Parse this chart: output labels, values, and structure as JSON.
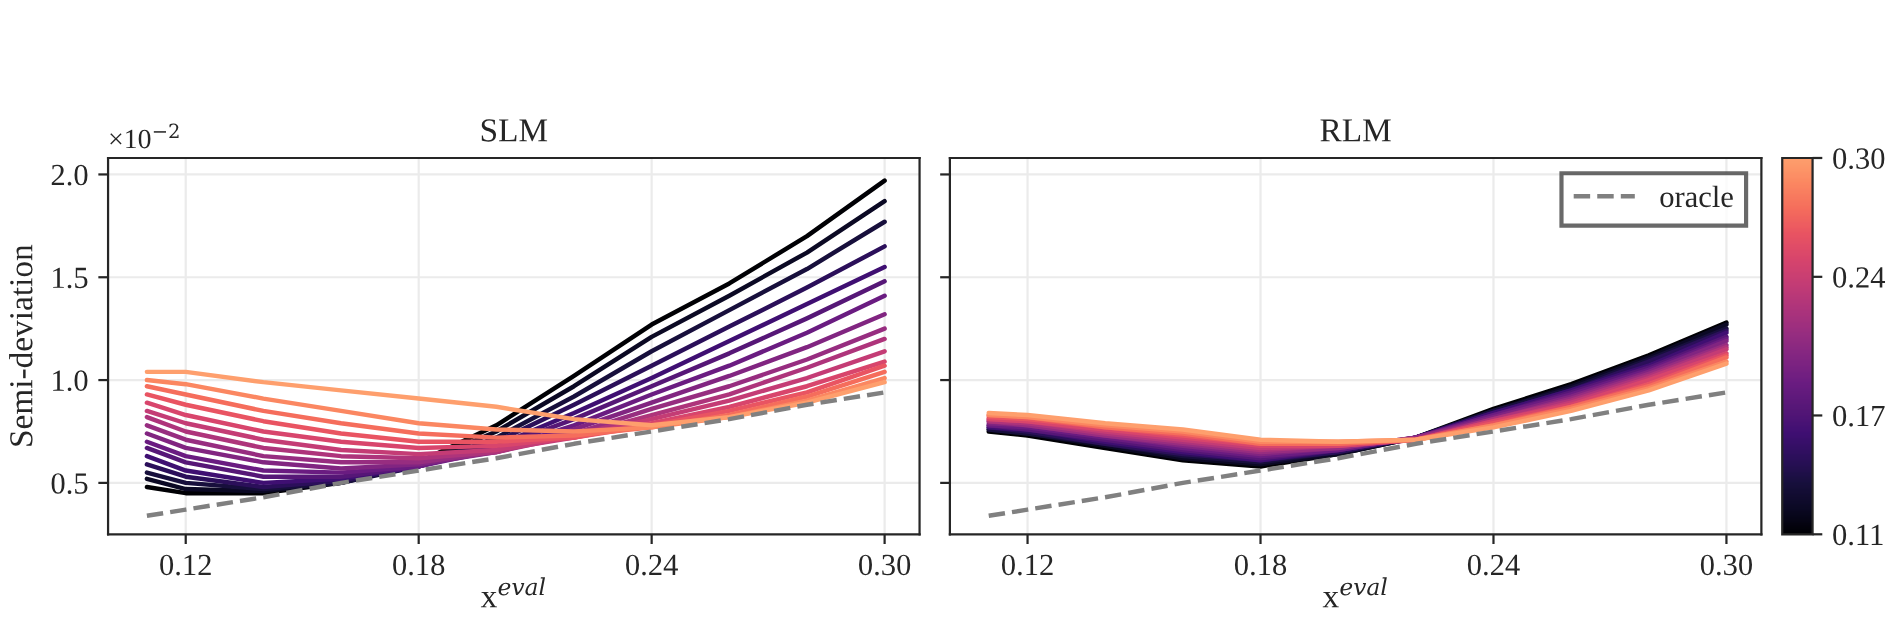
{
  "chart_data": [
    {
      "type": "line",
      "title": "SLM",
      "xlabel": "x$^{eval}$",
      "ylabel": "Semi-deviation",
      "annotations": [
        "×10$^{−2}$"
      ],
      "x": [
        0.11,
        0.12,
        0.14,
        0.16,
        0.18,
        0.2,
        0.22,
        0.24,
        0.26,
        0.28,
        0.3
      ],
      "xlim": [
        0.1,
        0.309
      ],
      "ylim": [
        0.25,
        2.08
      ],
      "xticks": [
        0.12,
        0.18,
        0.24,
        {
          "value": 0.3,
          "label": "0.30"
        }
      ],
      "yticks": [
        0.5,
        {
          "value": 1,
          "label": "1.0"
        },
        1.5,
        {
          "value": 2,
          "label": "2.0"
        }
      ],
      "grid": true,
      "legend": false,
      "series": [
        {
          "color": "#000004",
          "values": [
            0.48,
            0.45,
            0.45,
            0.5,
            0.6,
            0.78,
            1.02,
            1.27,
            1.47,
            1.7,
            1.97
          ]
        },
        {
          "color": "#0b0924",
          "values": [
            0.52,
            0.47,
            0.46,
            0.5,
            0.59,
            0.75,
            0.97,
            1.21,
            1.41,
            1.62,
            1.87
          ]
        },
        {
          "color": "#170f3c",
          "values": [
            0.55,
            0.5,
            0.47,
            0.5,
            0.58,
            0.72,
            0.92,
            1.14,
            1.34,
            1.54,
            1.77
          ]
        },
        {
          "color": "#2b0f5a",
          "values": [
            0.59,
            0.53,
            0.48,
            0.51,
            0.58,
            0.7,
            0.88,
            1.07,
            1.26,
            1.45,
            1.65
          ]
        },
        {
          "color": "#3f0f72",
          "values": [
            0.63,
            0.56,
            0.5,
            0.52,
            0.58,
            0.68,
            0.84,
            1.01,
            1.19,
            1.37,
            1.55
          ]
        },
        {
          "color": "#561777",
          "values": [
            0.67,
            0.6,
            0.53,
            0.53,
            0.58,
            0.67,
            0.81,
            0.97,
            1.13,
            1.3,
            1.48
          ]
        },
        {
          "color": "#6a1c81",
          "values": [
            0.7,
            0.63,
            0.56,
            0.55,
            0.58,
            0.66,
            0.78,
            0.93,
            1.07,
            1.23,
            1.41
          ]
        },
        {
          "color": "#812581",
          "values": [
            0.74,
            0.67,
            0.6,
            0.57,
            0.59,
            0.65,
            0.76,
            0.89,
            1.02,
            1.16,
            1.32
          ]
        },
        {
          "color": "#972d80",
          "values": [
            0.78,
            0.71,
            0.63,
            0.6,
            0.6,
            0.65,
            0.74,
            0.86,
            0.97,
            1.1,
            1.25
          ]
        },
        {
          "color": "#ae347b",
          "values": [
            0.82,
            0.75,
            0.67,
            0.63,
            0.62,
            0.65,
            0.73,
            0.83,
            0.93,
            1.06,
            1.2
          ]
        },
        {
          "color": "#c43c75",
          "values": [
            0.85,
            0.79,
            0.71,
            0.66,
            0.64,
            0.66,
            0.72,
            0.81,
            0.9,
            1.01,
            1.14
          ]
        },
        {
          "color": "#d8456c",
          "values": [
            0.89,
            0.83,
            0.75,
            0.7,
            0.67,
            0.68,
            0.72,
            0.79,
            0.87,
            0.97,
            1.09
          ]
        },
        {
          "color": "#e95462",
          "values": [
            0.93,
            0.88,
            0.8,
            0.74,
            0.7,
            0.7,
            0.72,
            0.78,
            0.85,
            0.94,
            1.07
          ]
        },
        {
          "color": "#f56d5c",
          "values": [
            0.97,
            0.93,
            0.85,
            0.79,
            0.74,
            0.72,
            0.73,
            0.77,
            0.83,
            0.92,
            1.04
          ]
        },
        {
          "color": "#fb8761",
          "values": [
            1.0,
            0.98,
            0.91,
            0.85,
            0.79,
            0.76,
            0.75,
            0.77,
            0.82,
            0.9,
            1.01
          ]
        },
        {
          "color": "#fe9f6d",
          "values": [
            1.04,
            1.04,
            0.99,
            0.95,
            0.91,
            0.87,
            0.81,
            0.78,
            0.82,
            0.89,
            0.99
          ]
        },
        {
          "color": "#808080",
          "line_style": "dashed",
          "values": [
            0.34,
            0.37,
            0.43,
            0.5,
            0.56,
            0.62,
            0.69,
            0.75,
            0.81,
            0.88,
            0.94
          ]
        }
      ]
    },
    {
      "type": "line",
      "title": "RLM",
      "xlabel": "x$^{eval}$",
      "x": [
        0.11,
        0.12,
        0.14,
        0.16,
        0.18,
        0.2,
        0.22,
        0.24,
        0.26,
        0.28,
        0.3
      ],
      "xlim": [
        0.1,
        0.309
      ],
      "ylim": [
        0.25,
        2.08
      ],
      "xticks": [
        0.12,
        0.18,
        0.24,
        {
          "value": 0.3,
          "label": "0.30"
        }
      ],
      "yticks": [
        {
          "value": 0.5,
          "label": null
        },
        {
          "value": 1,
          "label": null
        },
        {
          "value": 1.5,
          "label": null
        },
        {
          "value": 2,
          "label": null
        }
      ],
      "tick_labels": "x",
      "grid": true,
      "legend": "top right",
      "clim": [
        0.11,
        0.3
      ],
      "cticks": [
        0.11,
        0.17,
        0.24,
        {
          "value": 0.3,
          "label": "0.30"
        }
      ],
      "series": [
        {
          "color": "#000004",
          "values": [
            0.75,
            0.73,
            0.67,
            0.61,
            0.58,
            0.64,
            0.72,
            0.86,
            0.98,
            1.12,
            1.28
          ]
        },
        {
          "color": "#0b0924",
          "values": [
            0.76,
            0.74,
            0.68,
            0.62,
            0.59,
            0.64,
            0.72,
            0.85,
            0.97,
            1.11,
            1.27
          ]
        },
        {
          "color": "#170f3c",
          "values": [
            0.76,
            0.74,
            0.69,
            0.63,
            0.6,
            0.65,
            0.72,
            0.85,
            0.96,
            1.1,
            1.25
          ]
        },
        {
          "color": "#2b0f5a",
          "values": [
            0.77,
            0.75,
            0.69,
            0.64,
            0.61,
            0.65,
            0.72,
            0.84,
            0.95,
            1.09,
            1.24
          ]
        },
        {
          "color": "#3f0f72",
          "values": [
            0.77,
            0.76,
            0.7,
            0.65,
            0.61,
            0.66,
            0.72,
            0.84,
            0.95,
            1.07,
            1.23
          ]
        },
        {
          "color": "#561777",
          "values": [
            0.78,
            0.76,
            0.71,
            0.66,
            0.62,
            0.66,
            0.72,
            0.83,
            0.94,
            1.06,
            1.21
          ]
        },
        {
          "color": "#6a1c81",
          "values": [
            0.78,
            0.77,
            0.72,
            0.67,
            0.63,
            0.66,
            0.72,
            0.83,
            0.93,
            1.05,
            1.2
          ]
        },
        {
          "color": "#812581",
          "values": [
            0.79,
            0.78,
            0.73,
            0.68,
            0.64,
            0.67,
            0.72,
            0.82,
            0.92,
            1.04,
            1.19
          ]
        },
        {
          "color": "#972d80",
          "values": [
            0.8,
            0.78,
            0.73,
            0.69,
            0.65,
            0.67,
            0.72,
            0.81,
            0.91,
            1.03,
            1.17
          ]
        },
        {
          "color": "#ae347b",
          "values": [
            0.8,
            0.79,
            0.74,
            0.7,
            0.66,
            0.68,
            0.71,
            0.81,
            0.9,
            1.02,
            1.16
          ]
        },
        {
          "color": "#c43c75",
          "values": [
            0.81,
            0.8,
            0.75,
            0.71,
            0.67,
            0.68,
            0.71,
            0.8,
            0.89,
            1.01,
            1.15
          ]
        },
        {
          "color": "#d8456c",
          "values": [
            0.81,
            0.8,
            0.76,
            0.72,
            0.68,
            0.68,
            0.71,
            0.8,
            0.88,
            1.0,
            1.13
          ]
        },
        {
          "color": "#e95462",
          "values": [
            0.82,
            0.81,
            0.77,
            0.73,
            0.69,
            0.69,
            0.71,
            0.79,
            0.87,
            0.98,
            1.12
          ]
        },
        {
          "color": "#f56d5c",
          "values": [
            0.83,
            0.82,
            0.77,
            0.74,
            0.69,
            0.69,
            0.71,
            0.78,
            0.87,
            0.97,
            1.11
          ]
        },
        {
          "color": "#fb8761",
          "values": [
            0.83,
            0.82,
            0.78,
            0.75,
            0.7,
            0.7,
            0.71,
            0.78,
            0.86,
            0.96,
            1.09
          ]
        },
        {
          "color": "#fe9f6d",
          "values": [
            0.84,
            0.83,
            0.79,
            0.76,
            0.71,
            0.7,
            0.71,
            0.77,
            0.85,
            0.95,
            1.08
          ]
        },
        {
          "name": "oracle",
          "color": "#808080",
          "line_style": "dashed",
          "values": [
            0.34,
            0.37,
            0.43,
            0.5,
            0.56,
            0.62,
            0.69,
            0.75,
            0.81,
            0.88,
            0.94
          ]
        }
      ]
    }
  ]
}
